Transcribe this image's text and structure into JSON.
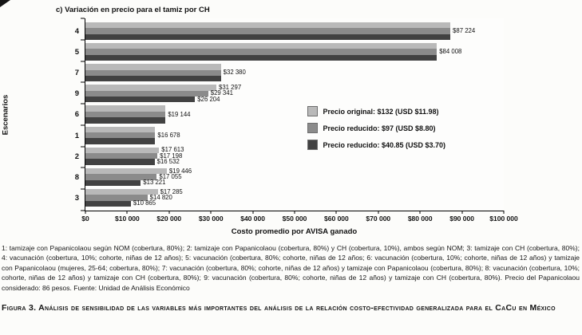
{
  "chart_data": {
    "type": "bar",
    "orientation": "horizontal",
    "title": "c) Variación en precio para el tamiz por CH",
    "xlabel": "Costo promedio por AVISA ganado",
    "ylabel": "Escenarios",
    "xlim": [
      0,
      100000
    ],
    "grid": false,
    "legend_position": "middle-right",
    "xtick_labels": [
      "$0",
      "$10 000",
      "$20 000",
      "$30 000",
      "$40 000",
      "$50 000",
      "$60 000",
      "$70 000",
      "$80 000",
      "$90 000",
      "$100 000"
    ],
    "categories": [
      "4",
      "5",
      "7",
      "9",
      "6",
      "1",
      "2",
      "8",
      "3"
    ],
    "series": [
      {
        "name": "Precio original: $132 (USD $11.98)",
        "color": "#b9b9b9",
        "values": [
          87224,
          84008,
          32380,
          31297,
          19144,
          16678,
          17613,
          19446,
          17285
        ]
      },
      {
        "name": "Precio reducido: $97 (USD $8.80)",
        "color": "#8b8b8b",
        "values": [
          87224,
          84008,
          32380,
          29341,
          19144,
          16678,
          17198,
          17055,
          14820
        ]
      },
      {
        "name": "Precio reducido: $40.85 (USD $3.70)",
        "color": "#424242",
        "values": [
          87224,
          84008,
          32380,
          26204,
          19144,
          16678,
          16532,
          13221,
          10865
        ]
      }
    ],
    "value_labels": [
      [
        "$87 224"
      ],
      [
        "$84 008"
      ],
      [
        "$32 380"
      ],
      [
        "$31 297",
        "$29 341",
        "$26 204"
      ],
      [
        "$19 144"
      ],
      [
        "$16 678"
      ],
      [
        "$17 613",
        "$17 198",
        "$16 532"
      ],
      [
        "$19 446",
        "$17 055",
        "$13 221"
      ],
      [
        "$17 285",
        "$14 820",
        "$10 865"
      ]
    ]
  },
  "footnote": "1: tamizaje con Papanicolaou según NOM (cobertura, 80%); 2: tamizaje con Papanicolaou (cobertura, 80%) y CH (cobertura, 10%), ambos según NOM; 3: tamizaje con CH (cobertura, 80%); 4: vacunación (cobertura, 10%; cohorte, niñas de 12 años); 5: vacunación (cobertura, 80%; cohorte, niñas de 12 años; 6: vacunación (cobertura, 10%; cohorte, niñas de 12 años) y tamizaje con Papanicolaou (mujeres, 25-64; cobertura, 80%); 7: vacunación (cobertura, 80%; cohorte, niñas de 12 años) y tamizaje con Papanicolaou (cobertura, 80%); 8: vacunación (cobertura, 10%; cohorte, niñas de 12 años) y tamizaje con CH (cobertura, 80%); 9: vacunación (cobertura, 80%; cohorte, niñas de 12 años) y tamizaje con CH (cobertura, 80%). Precio del Papanicolaou considerado: 86 pesos. Fuente: Unidad de Análisis Económico",
  "caption": {
    "label": "Figura 3.",
    "text": "Análisis de sensibilidad de las variables más importantes del análisis de la relación costo-efectividad generalizada para el CaCu en México"
  }
}
